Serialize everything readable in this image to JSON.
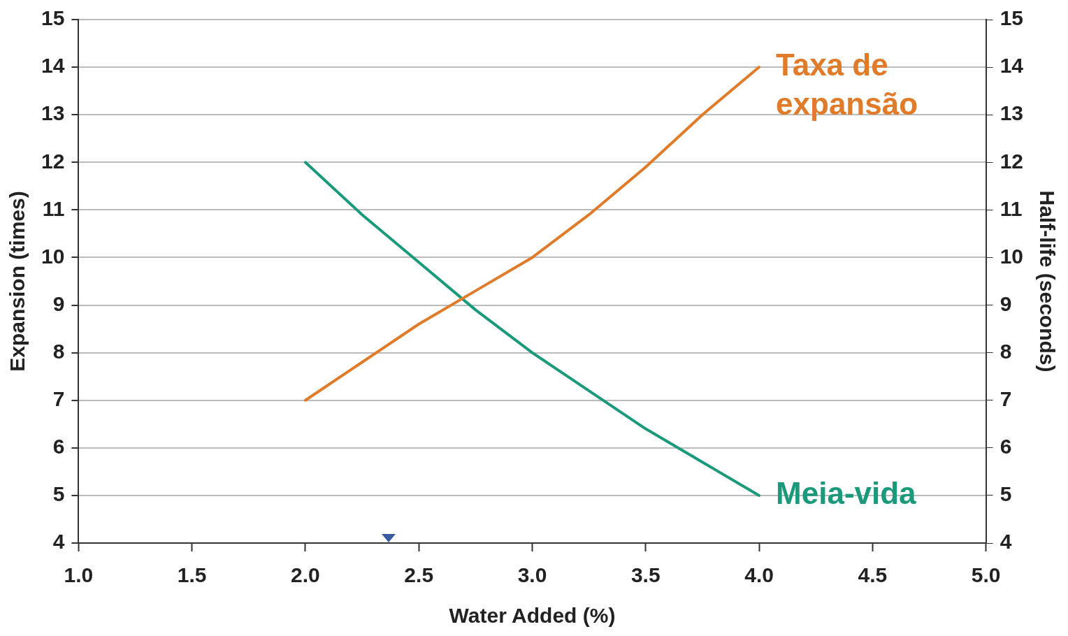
{
  "chart_data": {
    "type": "line",
    "xlabel": "Water Added (%)",
    "ylabel": "Expansion (times)",
    "y2label": "Half-life (seconds)",
    "x": [
      2.0,
      2.25,
      2.5,
      2.75,
      3.0,
      3.25,
      3.5,
      3.75,
      4.0
    ],
    "series": [
      {
        "name": "Taxa de expansão",
        "color": "#e07b2a",
        "values": [
          7,
          7.8,
          8.6,
          9.3,
          10,
          10.9,
          11.9,
          13,
          14
        ]
      },
      {
        "name": "Meia-vida",
        "color": "#1a9a7a",
        "axis": "y2",
        "values": [
          12,
          10.9,
          9.9,
          8.9,
          8.0,
          7.2,
          6.4,
          5.7,
          5
        ]
      }
    ],
    "xlim": [
      1.0,
      5.0
    ],
    "xticks": [
      {
        "value": 1,
        "label": "1.0"
      },
      {
        "value": 1.5,
        "label": "1.5"
      },
      {
        "value": 2,
        "label": "2.0"
      },
      {
        "value": 2.5,
        "label": "2.5"
      },
      {
        "value": 3,
        "label": "3.0"
      },
      {
        "value": 3.5,
        "label": "3.5"
      },
      {
        "value": 4,
        "label": "4.0"
      },
      {
        "value": 4.5,
        "label": "4.5"
      },
      {
        "value": 5,
        "label": "5.0"
      }
    ],
    "ylim": [
      4,
      15
    ],
    "yticks": [
      4,
      5,
      6,
      7,
      8,
      9,
      10,
      11,
      12,
      13,
      14,
      15
    ],
    "y2lim": [
      4,
      15
    ],
    "y2ticks": [
      4,
      5,
      6,
      7,
      8,
      9,
      10,
      11,
      12,
      13,
      14,
      15
    ],
    "grid": "y",
    "legend": false,
    "marker": "none",
    "line_style": "solid"
  }
}
